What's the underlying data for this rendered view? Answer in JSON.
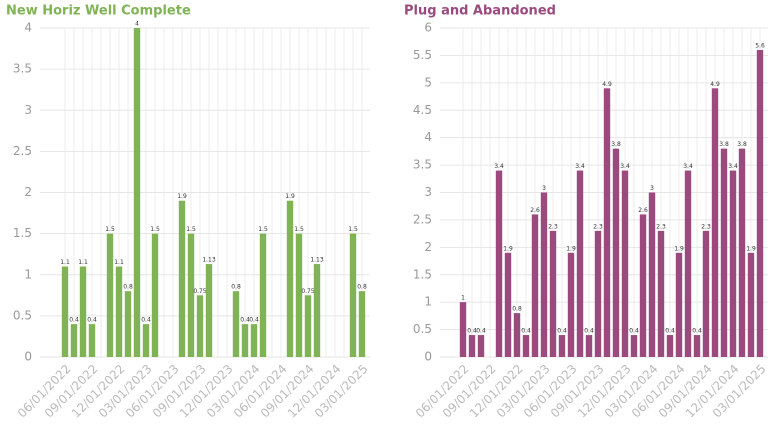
{
  "chart_data": [
    {
      "type": "bar",
      "title": "New Horiz Well Complete",
      "color": "#7fb356",
      "categories": [
        "06/01/2022",
        null,
        null,
        "09/01/2022",
        null,
        null,
        "12/01/2022",
        null,
        null,
        "03/01/2023",
        null,
        null,
        "06/01/2023",
        null,
        null,
        "09/01/2023",
        null,
        null,
        "12/01/2023",
        null,
        null,
        "03/01/2024",
        null,
        null,
        "06/01/2024",
        null,
        null,
        "09/01/2024",
        null,
        null,
        "12/01/2024",
        null,
        null,
        "03/01/2025"
      ],
      "values": [
        1.1,
        0.4,
        1.1,
        0.4,
        null,
        1.5,
        1.1,
        0.8,
        4,
        0.4,
        1.5,
        null,
        null,
        1.9,
        1.5,
        0.75,
        1.13,
        null,
        null,
        0.8,
        0.4,
        0.4,
        1.5,
        null,
        null,
        1.9,
        1.5,
        0.75,
        1.13,
        null,
        null,
        null,
        1.5,
        0.8
      ],
      "ylim": [
        0,
        4
      ],
      "yticks": [
        0,
        0.5,
        1,
        1.5,
        2,
        2.5,
        3,
        3.5,
        4
      ],
      "grid": true
    },
    {
      "type": "bar",
      "title": "Plug and Abandoned",
      "color": "#9b4a7e",
      "categories": [
        "06/01/2022",
        null,
        null,
        "09/01/2022",
        null,
        null,
        "12/01/2022",
        null,
        null,
        "03/01/2023",
        null,
        null,
        "06/01/2023",
        null,
        null,
        "09/01/2023",
        null,
        null,
        "12/01/2023",
        null,
        null,
        "03/01/2024",
        null,
        null,
        "06/01/2024",
        null,
        null,
        "09/01/2024",
        null,
        null,
        "12/01/2024",
        null,
        null,
        "03/01/2025"
      ],
      "values": [
        1,
        0.4,
        0.4,
        null,
        3.4,
        1.9,
        0.8,
        0.4,
        2.6,
        3,
        2.3,
        0.4,
        1.9,
        3.4,
        0.4,
        2.3,
        4.9,
        3.8,
        3.4,
        0.4,
        2.6,
        3,
        2.3,
        0.4,
        1.9,
        3.4,
        0.4,
        2.3,
        4.9,
        3.8,
        3.4,
        3.8,
        1.9,
        5.6
      ],
      "ylim": [
        0,
        6
      ],
      "yticks": [
        0,
        0.5,
        1,
        1.5,
        2,
        2.5,
        3,
        3.5,
        4,
        4.5,
        5,
        5.5,
        6
      ],
      "grid": true
    }
  ]
}
